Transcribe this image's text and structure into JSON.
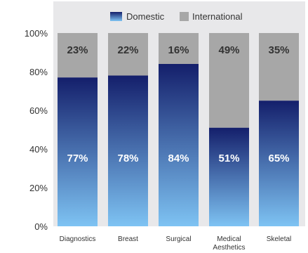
{
  "chart_data": {
    "type": "bar",
    "stacked": true,
    "categories": [
      [
        "Diagnostics"
      ],
      [
        "Breast"
      ],
      [
        "Surgical"
      ],
      [
        "Medical",
        "Aesthetics"
      ],
      [
        "Skeletal"
      ]
    ],
    "series": [
      {
        "name": "Domestic",
        "values": [
          77,
          78,
          84,
          51,
          65
        ],
        "labels": [
          "77%",
          "78%",
          "84%",
          "51%",
          "65%"
        ],
        "color_top": "#141f6b",
        "color_bottom": "#7ec3f3"
      },
      {
        "name": "International",
        "values": [
          23,
          22,
          16,
          49,
          35
        ],
        "labels": [
          "23%",
          "22%",
          "16%",
          "49%",
          "35%"
        ],
        "color": "#a7a7a7"
      }
    ],
    "y_ticks": [
      "0%",
      "20%",
      "40%",
      "60%",
      "80%",
      "100%"
    ],
    "ylim": [
      0,
      100
    ],
    "legend_position": "top-center",
    "plot_background": "#e8e8ea"
  }
}
